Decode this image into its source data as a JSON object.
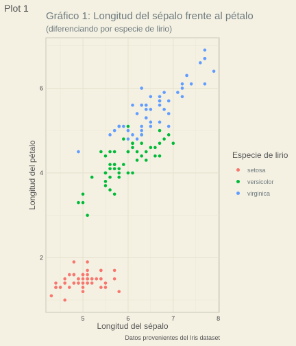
{
  "tab_label": "Plot 1",
  "chart_data": {
    "type": "scatter",
    "title": "Gráfico 1: Longitud del sépalo frente al pétalo",
    "subtitle": "(diferenciando por especie de lirio)",
    "xlabel": "Longitud del sépalo",
    "ylabel": "Longitud del pétalo",
    "caption": "Datos provenientes del Iris dataset",
    "xlim": [
      4.18,
      8.02
    ],
    "ylim": [
      0.71,
      7.19
    ],
    "xticks": [
      5,
      6,
      7,
      8
    ],
    "yticks": [
      2,
      4,
      6
    ],
    "legend": {
      "title": "Especie de lirio",
      "position": "right"
    },
    "series": [
      {
        "name": "setosa",
        "color": "#f8766d",
        "points": [
          [
            5.1,
            1.4
          ],
          [
            4.9,
            1.4
          ],
          [
            4.7,
            1.3
          ],
          [
            4.6,
            1.5
          ],
          [
            5.0,
            1.4
          ],
          [
            5.4,
            1.7
          ],
          [
            4.6,
            1.4
          ],
          [
            5.0,
            1.5
          ],
          [
            4.4,
            1.4
          ],
          [
            4.9,
            1.5
          ],
          [
            5.4,
            1.5
          ],
          [
            4.8,
            1.6
          ],
          [
            4.8,
            1.4
          ],
          [
            4.3,
            1.1
          ],
          [
            5.8,
            1.2
          ],
          [
            5.7,
            1.5
          ],
          [
            5.4,
            1.3
          ],
          [
            5.1,
            1.4
          ],
          [
            5.7,
            1.7
          ],
          [
            5.1,
            1.5
          ],
          [
            5.4,
            1.7
          ],
          [
            5.1,
            1.5
          ],
          [
            4.6,
            1.0
          ],
          [
            5.1,
            1.7
          ],
          [
            4.8,
            1.9
          ],
          [
            5.0,
            1.6
          ],
          [
            5.0,
            1.6
          ],
          [
            5.2,
            1.5
          ],
          [
            5.2,
            1.4
          ],
          [
            4.7,
            1.6
          ],
          [
            4.8,
            1.6
          ],
          [
            5.4,
            1.5
          ],
          [
            5.2,
            1.5
          ],
          [
            5.5,
            1.4
          ],
          [
            4.9,
            1.5
          ],
          [
            5.0,
            1.2
          ],
          [
            5.5,
            1.3
          ],
          [
            4.9,
            1.4
          ],
          [
            4.4,
            1.3
          ],
          [
            5.1,
            1.5
          ],
          [
            5.0,
            1.3
          ],
          [
            4.5,
            1.3
          ],
          [
            4.4,
            1.3
          ],
          [
            5.0,
            1.6
          ],
          [
            5.1,
            1.9
          ],
          [
            4.8,
            1.4
          ],
          [
            5.1,
            1.6
          ],
          [
            4.6,
            1.4
          ],
          [
            5.3,
            1.5
          ],
          [
            5.0,
            1.4
          ]
        ]
      },
      {
        "name": "versicolor",
        "color": "#00ba38",
        "points": [
          [
            7.0,
            4.7
          ],
          [
            6.4,
            4.5
          ],
          [
            6.9,
            4.9
          ],
          [
            5.5,
            4.0
          ],
          [
            6.5,
            4.6
          ],
          [
            5.7,
            4.5
          ],
          [
            6.3,
            4.7
          ],
          [
            4.9,
            3.3
          ],
          [
            6.6,
            4.6
          ],
          [
            5.2,
            3.9
          ],
          [
            5.0,
            3.5
          ],
          [
            5.9,
            4.2
          ],
          [
            6.0,
            4.0
          ],
          [
            6.1,
            4.7
          ],
          [
            5.6,
            3.6
          ],
          [
            6.7,
            4.4
          ],
          [
            5.6,
            4.5
          ],
          [
            5.8,
            4.1
          ],
          [
            6.2,
            4.5
          ],
          [
            5.6,
            3.9
          ],
          [
            5.9,
            4.8
          ],
          [
            6.1,
            4.0
          ],
          [
            6.3,
            4.9
          ],
          [
            6.1,
            4.7
          ],
          [
            6.4,
            4.3
          ],
          [
            6.6,
            4.4
          ],
          [
            6.8,
            4.8
          ],
          [
            6.7,
            5.0
          ],
          [
            6.0,
            4.5
          ],
          [
            5.7,
            3.5
          ],
          [
            5.5,
            3.8
          ],
          [
            5.5,
            3.7
          ],
          [
            5.8,
            3.9
          ],
          [
            6.0,
            5.1
          ],
          [
            5.4,
            4.5
          ],
          [
            6.0,
            4.5
          ],
          [
            6.7,
            4.7
          ],
          [
            6.3,
            4.4
          ],
          [
            5.6,
            4.1
          ],
          [
            5.5,
            4.0
          ],
          [
            5.5,
            4.4
          ],
          [
            6.1,
            4.6
          ],
          [
            5.8,
            4.0
          ],
          [
            5.0,
            3.3
          ],
          [
            5.6,
            4.2
          ],
          [
            5.7,
            4.2
          ],
          [
            5.7,
            4.2
          ],
          [
            6.2,
            4.3
          ],
          [
            5.1,
            3.0
          ],
          [
            5.7,
            4.1
          ]
        ]
      },
      {
        "name": "virginica",
        "color": "#619cff",
        "points": [
          [
            6.3,
            6.0
          ],
          [
            5.8,
            5.1
          ],
          [
            7.1,
            5.9
          ],
          [
            6.3,
            5.6
          ],
          [
            6.5,
            5.8
          ],
          [
            7.6,
            6.6
          ],
          [
            4.9,
            4.5
          ],
          [
            7.3,
            6.3
          ],
          [
            6.7,
            5.8
          ],
          [
            7.2,
            6.1
          ],
          [
            6.5,
            5.1
          ],
          [
            6.4,
            5.3
          ],
          [
            6.8,
            5.5
          ],
          [
            5.7,
            5.0
          ],
          [
            5.8,
            5.1
          ],
          [
            6.4,
            5.3
          ],
          [
            6.5,
            5.5
          ],
          [
            7.7,
            6.7
          ],
          [
            7.7,
            6.9
          ],
          [
            6.0,
            5.0
          ],
          [
            6.9,
            5.7
          ],
          [
            5.6,
            4.9
          ],
          [
            7.7,
            6.7
          ],
          [
            6.3,
            4.9
          ],
          [
            6.7,
            5.7
          ],
          [
            7.2,
            6.0
          ],
          [
            6.2,
            4.8
          ],
          [
            6.1,
            4.9
          ],
          [
            6.4,
            5.6
          ],
          [
            7.2,
            5.8
          ],
          [
            7.4,
            6.1
          ],
          [
            7.9,
            6.4
          ],
          [
            6.4,
            5.6
          ],
          [
            6.3,
            5.1
          ],
          [
            6.1,
            5.6
          ],
          [
            7.7,
            6.1
          ],
          [
            6.3,
            5.6
          ],
          [
            6.4,
            5.5
          ],
          [
            6.0,
            4.8
          ],
          [
            6.9,
            5.4
          ],
          [
            6.7,
            5.6
          ],
          [
            6.9,
            5.1
          ],
          [
            5.8,
            5.1
          ],
          [
            6.8,
            5.9
          ],
          [
            6.7,
            5.7
          ],
          [
            6.7,
            5.2
          ],
          [
            6.3,
            5.0
          ],
          [
            6.5,
            5.2
          ],
          [
            6.2,
            5.4
          ],
          [
            5.9,
            5.1
          ]
        ]
      }
    ]
  }
}
